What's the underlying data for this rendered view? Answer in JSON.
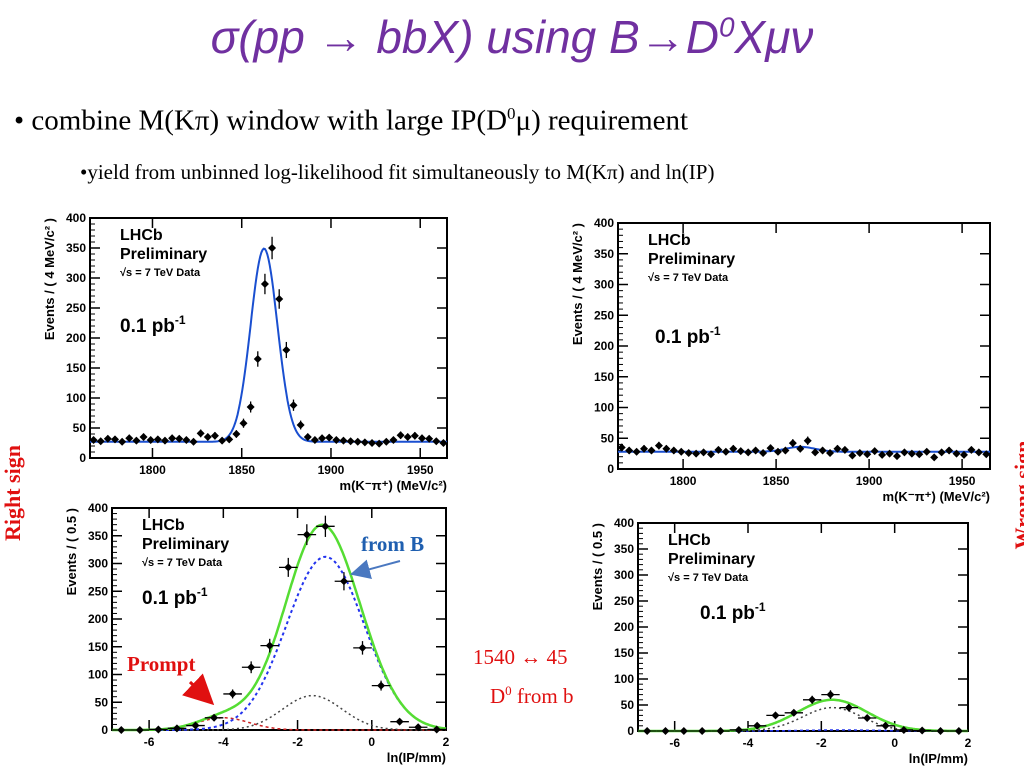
{
  "header": {
    "title_main": "σ(pp → bbX) using B→D",
    "title_sup": "0",
    "title_tail": "Xμν"
  },
  "bullets": {
    "b1_pre": "• combine M(Kπ) window with large IP(D",
    "b1_sup": "0",
    "b1_post": "μ) requirement",
    "b2": "•yield from unbinned log-likelihood fit simultaneously to M(Kπ) and ln(IP)"
  },
  "side_labels": {
    "left": "Right sign",
    "right": "Wrong  sign"
  },
  "annotations": {
    "from_b": "from B",
    "prompt": "Prompt",
    "yields": "1540   ↔ 45",
    "d0_pre": "D",
    "d0_sup": "0",
    "d0_post": " from b"
  },
  "colors": {
    "title": "#7030a0",
    "red": "#e01010",
    "blue_text": "#1f5fb0",
    "fit_blue": "#1a4fd0",
    "fit_green": "#55dd33",
    "dot_blue": "#2233ee",
    "dot_red": "#cc2222",
    "dot_black": "#444444"
  },
  "chart_data": [
    {
      "id": "rs_mass",
      "type": "scatter",
      "lhcb": "LHCb",
      "prelim": "Preliminary",
      "energy": "√s = 7 TeV Data",
      "lumi": "0.1 pb",
      "lumi_sup": "-1",
      "xlabel": "m(K⁻π⁺) (MeV/c²)",
      "ylabel": "Events / ( 4 MeV/c² )",
      "xlim": [
        1765,
        1965
      ],
      "ylim": [
        0,
        400
      ],
      "xticks": [
        1800,
        1850,
        1900,
        1950
      ],
      "yticks": [
        0,
        50,
        100,
        150,
        200,
        250,
        300,
        350,
        400
      ],
      "x": [
        1767,
        1771,
        1775,
        1779,
        1783,
        1787,
        1791,
        1795,
        1799,
        1803,
        1807,
        1811,
        1815,
        1819,
        1823,
        1827,
        1831,
        1835,
        1839,
        1843,
        1847,
        1851,
        1855,
        1859,
        1863,
        1867,
        1871,
        1875,
        1879,
        1883,
        1887,
        1891,
        1895,
        1899,
        1903,
        1907,
        1911,
        1915,
        1919,
        1923,
        1927,
        1931,
        1935,
        1939,
        1943,
        1947,
        1951,
        1955,
        1959,
        1963
      ],
      "y": [
        30,
        28,
        32,
        31,
        27,
        33,
        29,
        35,
        30,
        31,
        29,
        33,
        32,
        30,
        27,
        41,
        35,
        37,
        29,
        31,
        40,
        58,
        85,
        165,
        290,
        350,
        265,
        180,
        88,
        55,
        35,
        30,
        33,
        34,
        30,
        29,
        28,
        27,
        26,
        25,
        24,
        27,
        30,
        38,
        35,
        37,
        33,
        32,
        28,
        25
      ],
      "fit": {
        "bkg": 27,
        "peak": 322,
        "mean": 1862.5,
        "sigma": 7.5
      }
    },
    {
      "id": "ws_mass",
      "type": "scatter",
      "lhcb": "LHCb",
      "prelim": "Preliminary",
      "energy": "√s = 7 TeV Data",
      "lumi": "0.1 pb",
      "lumi_sup": "-1",
      "xlabel": "m(K⁻π⁺) (MeV/c²)",
      "ylabel": "Events / ( 4 MeV/c² )",
      "xlim": [
        1765,
        1965
      ],
      "ylim": [
        0,
        400
      ],
      "xticks": [
        1800,
        1850,
        1900,
        1950
      ],
      "yticks": [
        0,
        50,
        100,
        150,
        200,
        250,
        300,
        350,
        400
      ],
      "x": [
        1767,
        1771,
        1775,
        1779,
        1783,
        1787,
        1791,
        1795,
        1799,
        1803,
        1807,
        1811,
        1815,
        1819,
        1823,
        1827,
        1831,
        1835,
        1839,
        1843,
        1847,
        1851,
        1855,
        1859,
        1863,
        1867,
        1871,
        1875,
        1879,
        1883,
        1887,
        1891,
        1895,
        1899,
        1903,
        1907,
        1911,
        1915,
        1919,
        1923,
        1927,
        1931,
        1935,
        1939,
        1943,
        1947,
        1951,
        1955,
        1959,
        1963
      ],
      "y": [
        35,
        30,
        28,
        33,
        30,
        38,
        33,
        30,
        28,
        26,
        25,
        27,
        24,
        31,
        28,
        33,
        29,
        27,
        30,
        26,
        34,
        28,
        30,
        42,
        33,
        46,
        27,
        30,
        26,
        33,
        31,
        22,
        26,
        24,
        29,
        23,
        25,
        21,
        27,
        25,
        24,
        28,
        19,
        27,
        30,
        25,
        23,
        31,
        27,
        24
      ],
      "fit": {
        "bkg": 28,
        "peak": 8,
        "mean": 1863,
        "sigma": 8
      }
    },
    {
      "id": "rs_lnip",
      "type": "scatter",
      "lhcb": "LHCb",
      "prelim": "Preliminary",
      "energy": "√s = 7 TeV Data",
      "lumi": "0.1 pb",
      "lumi_sup": "-1",
      "xlabel": "ln(IP/mm)",
      "ylabel": "Events / ( 0.5 )",
      "xlim": [
        -7,
        2
      ],
      "ylim": [
        0,
        400
      ],
      "xticks": [
        -6,
        -4,
        -2,
        0,
        2
      ],
      "yticks": [
        0,
        50,
        100,
        150,
        200,
        250,
        300,
        350,
        400
      ],
      "x": [
        -6.75,
        -6.25,
        -5.75,
        -5.25,
        -4.75,
        -4.25,
        -3.75,
        -3.25,
        -2.75,
        -2.25,
        -1.75,
        -1.25,
        -0.75,
        -0.25,
        0.25,
        0.75,
        1.25,
        1.75
      ],
      "y": [
        0,
        0,
        1,
        3,
        8,
        22,
        65,
        113,
        152,
        293,
        352,
        367,
        268,
        148,
        80,
        15,
        5,
        1
      ],
      "fromB": {
        "a": 312,
        "mean": -1.25,
        "sigma": 1.05
      },
      "prompt": {
        "a": 22,
        "mean": -4.0,
        "sigma": 0.7
      },
      "other": {
        "a": 62,
        "mean": -1.6,
        "sigma": 0.8
      }
    },
    {
      "id": "ws_lnip",
      "type": "scatter",
      "lhcb": "LHCb",
      "prelim": "Preliminary",
      "energy": "√s = 7 TeV Data",
      "lumi": "0.1 pb",
      "lumi_sup": "-1",
      "xlabel": "ln(IP/mm)",
      "ylabel": "Events / ( 0.5 )",
      "xlim": [
        -7,
        2
      ],
      "ylim": [
        0,
        400
      ],
      "xticks": [
        -6,
        -4,
        -2,
        0,
        2
      ],
      "yticks": [
        0,
        50,
        100,
        150,
        200,
        250,
        300,
        350,
        400
      ],
      "x": [
        -6.75,
        -6.25,
        -5.75,
        -5.25,
        -4.75,
        -4.25,
        -3.75,
        -3.25,
        -2.75,
        -2.25,
        -1.75,
        -1.25,
        -0.75,
        -0.25,
        0.25,
        0.75,
        1.25,
        1.75
      ],
      "y": [
        0,
        0,
        0,
        0,
        0,
        2,
        10,
        30,
        35,
        60,
        70,
        45,
        25,
        10,
        2,
        1,
        0,
        0
      ],
      "total": {
        "a": 60,
        "mean": -1.7,
        "sigma": 0.95
      },
      "fromB": {
        "a": 2,
        "mean": -1.5,
        "sigma": 1.0
      }
    }
  ]
}
